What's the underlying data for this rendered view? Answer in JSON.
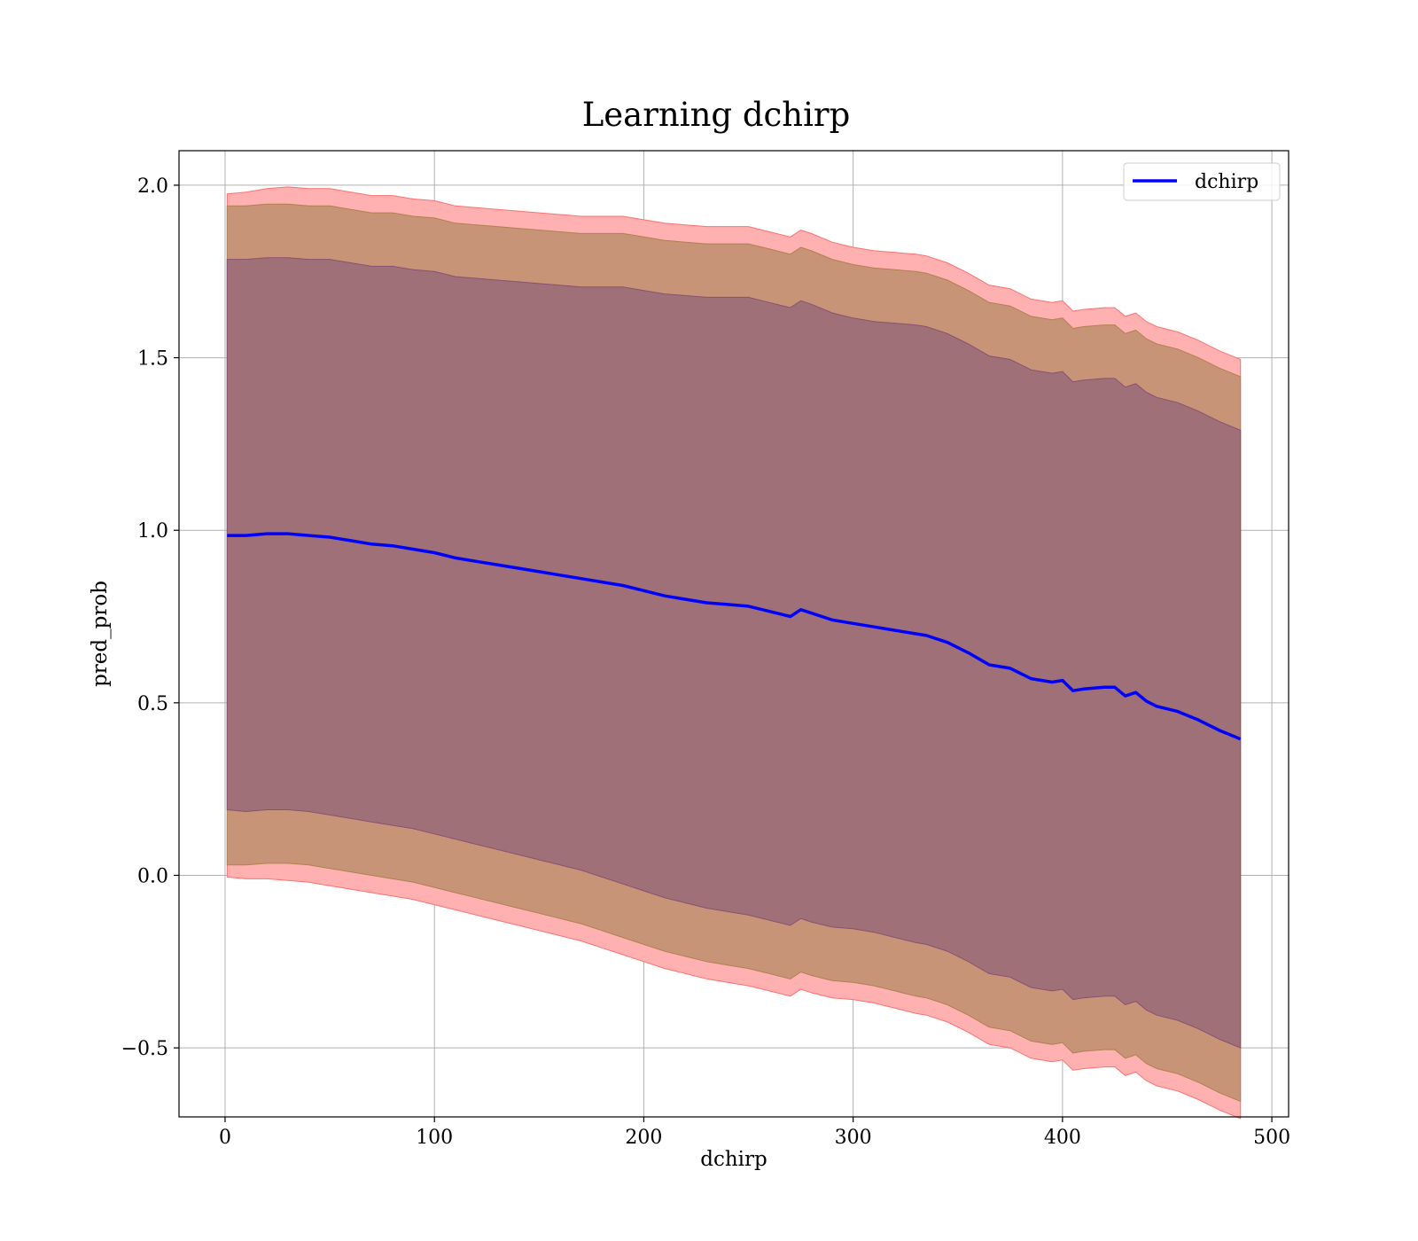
{
  "chart_data": {
    "type": "area",
    "title": "Learning dchirp",
    "xlabel": "dchirp",
    "ylabel": "pred_prob",
    "xlim": [
      -22,
      508
    ],
    "ylim": [
      -0.7,
      2.1
    ],
    "xticks": [
      0,
      100,
      200,
      300,
      400,
      500
    ],
    "yticks": [
      -0.5,
      0.0,
      0.5,
      1.0,
      1.5,
      2.0
    ],
    "xtick_labels": [
      "0",
      "100",
      "200",
      "300",
      "400",
      "500"
    ],
    "ytick_labels": [
      "−0.5",
      "0.0",
      "0.5",
      "1.0",
      "1.5",
      "2.0"
    ],
    "grid": true,
    "legend": {
      "position": "upper-right",
      "entries": [
        "dchirp"
      ]
    },
    "colors": {
      "line": "#0000ff",
      "band": "#ff0000",
      "band_inner": "#c08a5a",
      "band_core": "#6a3050",
      "grid": "#b0b0b0"
    },
    "x": [
      1,
      10,
      20,
      30,
      40,
      50,
      60,
      70,
      80,
      90,
      100,
      110,
      120,
      130,
      140,
      150,
      160,
      170,
      180,
      190,
      200,
      210,
      220,
      230,
      240,
      250,
      260,
      270,
      275,
      280,
      290,
      300,
      310,
      320,
      330,
      335,
      345,
      355,
      365,
      375,
      385,
      395,
      400,
      405,
      410,
      420,
      425,
      430,
      435,
      440,
      445,
      455,
      465,
      475,
      485
    ],
    "series": [
      {
        "name": "dchirp",
        "values": [
          0.985,
          0.985,
          0.99,
          0.99,
          0.985,
          0.98,
          0.97,
          0.96,
          0.955,
          0.945,
          0.935,
          0.92,
          0.91,
          0.9,
          0.89,
          0.88,
          0.87,
          0.86,
          0.85,
          0.84,
          0.825,
          0.81,
          0.8,
          0.79,
          0.785,
          0.78,
          0.765,
          0.75,
          0.77,
          0.76,
          0.74,
          0.73,
          0.72,
          0.71,
          0.7,
          0.695,
          0.675,
          0.645,
          0.61,
          0.6,
          0.57,
          0.56,
          0.565,
          0.535,
          0.54,
          0.545,
          0.545,
          0.52,
          0.53,
          0.505,
          0.49,
          0.475,
          0.45,
          0.42,
          0.395
        ]
      }
    ],
    "bands": [
      {
        "sigma": 3,
        "lower": [
          -0.005,
          -0.01,
          -0.01,
          -0.015,
          -0.02,
          -0.03,
          -0.04,
          -0.05,
          -0.06,
          -0.07,
          -0.085,
          -0.1,
          -0.115,
          -0.13,
          -0.145,
          -0.16,
          -0.175,
          -0.19,
          -0.21,
          -0.23,
          -0.25,
          -0.27,
          -0.285,
          -0.3,
          -0.31,
          -0.32,
          -0.335,
          -0.35,
          -0.33,
          -0.34,
          -0.355,
          -0.36,
          -0.37,
          -0.385,
          -0.4,
          -0.405,
          -0.425,
          -0.455,
          -0.49,
          -0.5,
          -0.53,
          -0.54,
          -0.535,
          -0.565,
          -0.56,
          -0.555,
          -0.555,
          -0.58,
          -0.57,
          -0.595,
          -0.61,
          -0.625,
          -0.65,
          -0.68,
          -0.705
        ],
        "upper": [
          1.975,
          1.98,
          1.99,
          1.995,
          1.99,
          1.99,
          1.98,
          1.97,
          1.97,
          1.96,
          1.955,
          1.94,
          1.935,
          1.93,
          1.925,
          1.92,
          1.915,
          1.91,
          1.91,
          1.91,
          1.9,
          1.89,
          1.885,
          1.88,
          1.88,
          1.88,
          1.865,
          1.85,
          1.87,
          1.86,
          1.835,
          1.82,
          1.81,
          1.805,
          1.8,
          1.795,
          1.775,
          1.745,
          1.71,
          1.7,
          1.67,
          1.66,
          1.665,
          1.635,
          1.64,
          1.645,
          1.645,
          1.62,
          1.63,
          1.605,
          1.59,
          1.575,
          1.55,
          1.52,
          1.495
        ]
      },
      {
        "sigma": 2,
        "lower": [
          0.03,
          0.03,
          0.035,
          0.035,
          0.03,
          0.02,
          0.01,
          0.0,
          -0.01,
          -0.02,
          -0.035,
          -0.05,
          -0.065,
          -0.08,
          -0.095,
          -0.11,
          -0.125,
          -0.14,
          -0.16,
          -0.18,
          -0.2,
          -0.22,
          -0.235,
          -0.25,
          -0.26,
          -0.27,
          -0.285,
          -0.3,
          -0.28,
          -0.29,
          -0.305,
          -0.31,
          -0.32,
          -0.335,
          -0.35,
          -0.355,
          -0.375,
          -0.405,
          -0.44,
          -0.45,
          -0.48,
          -0.49,
          -0.485,
          -0.515,
          -0.51,
          -0.505,
          -0.505,
          -0.53,
          -0.52,
          -0.545,
          -0.56,
          -0.575,
          -0.6,
          -0.63,
          -0.655
        ],
        "upper": [
          1.94,
          1.94,
          1.945,
          1.945,
          1.94,
          1.94,
          1.93,
          1.92,
          1.92,
          1.91,
          1.905,
          1.89,
          1.885,
          1.88,
          1.875,
          1.87,
          1.865,
          1.86,
          1.86,
          1.86,
          1.85,
          1.84,
          1.835,
          1.83,
          1.83,
          1.83,
          1.815,
          1.8,
          1.82,
          1.81,
          1.785,
          1.77,
          1.76,
          1.755,
          1.75,
          1.745,
          1.725,
          1.695,
          1.66,
          1.65,
          1.62,
          1.61,
          1.615,
          1.585,
          1.59,
          1.595,
          1.595,
          1.57,
          1.58,
          1.555,
          1.54,
          1.525,
          1.5,
          1.47,
          1.445
        ]
      },
      {
        "sigma": 1,
        "lower": [
          0.19,
          0.185,
          0.19,
          0.19,
          0.185,
          0.175,
          0.165,
          0.155,
          0.145,
          0.135,
          0.12,
          0.105,
          0.09,
          0.075,
          0.06,
          0.045,
          0.03,
          0.015,
          -0.005,
          -0.025,
          -0.045,
          -0.065,
          -0.08,
          -0.095,
          -0.105,
          -0.115,
          -0.13,
          -0.145,
          -0.125,
          -0.135,
          -0.15,
          -0.155,
          -0.165,
          -0.18,
          -0.195,
          -0.2,
          -0.22,
          -0.25,
          -0.285,
          -0.295,
          -0.325,
          -0.335,
          -0.33,
          -0.36,
          -0.355,
          -0.35,
          -0.35,
          -0.375,
          -0.365,
          -0.39,
          -0.405,
          -0.42,
          -0.445,
          -0.475,
          -0.5
        ],
        "upper": [
          1.785,
          1.785,
          1.79,
          1.79,
          1.785,
          1.785,
          1.775,
          1.765,
          1.765,
          1.755,
          1.75,
          1.735,
          1.73,
          1.725,
          1.72,
          1.715,
          1.71,
          1.705,
          1.705,
          1.705,
          1.695,
          1.685,
          1.68,
          1.675,
          1.675,
          1.675,
          1.66,
          1.645,
          1.665,
          1.655,
          1.63,
          1.615,
          1.605,
          1.6,
          1.595,
          1.59,
          1.57,
          1.54,
          1.505,
          1.495,
          1.465,
          1.455,
          1.46,
          1.43,
          1.435,
          1.44,
          1.44,
          1.415,
          1.425,
          1.4,
          1.385,
          1.37,
          1.345,
          1.315,
          1.29
        ]
      }
    ]
  }
}
